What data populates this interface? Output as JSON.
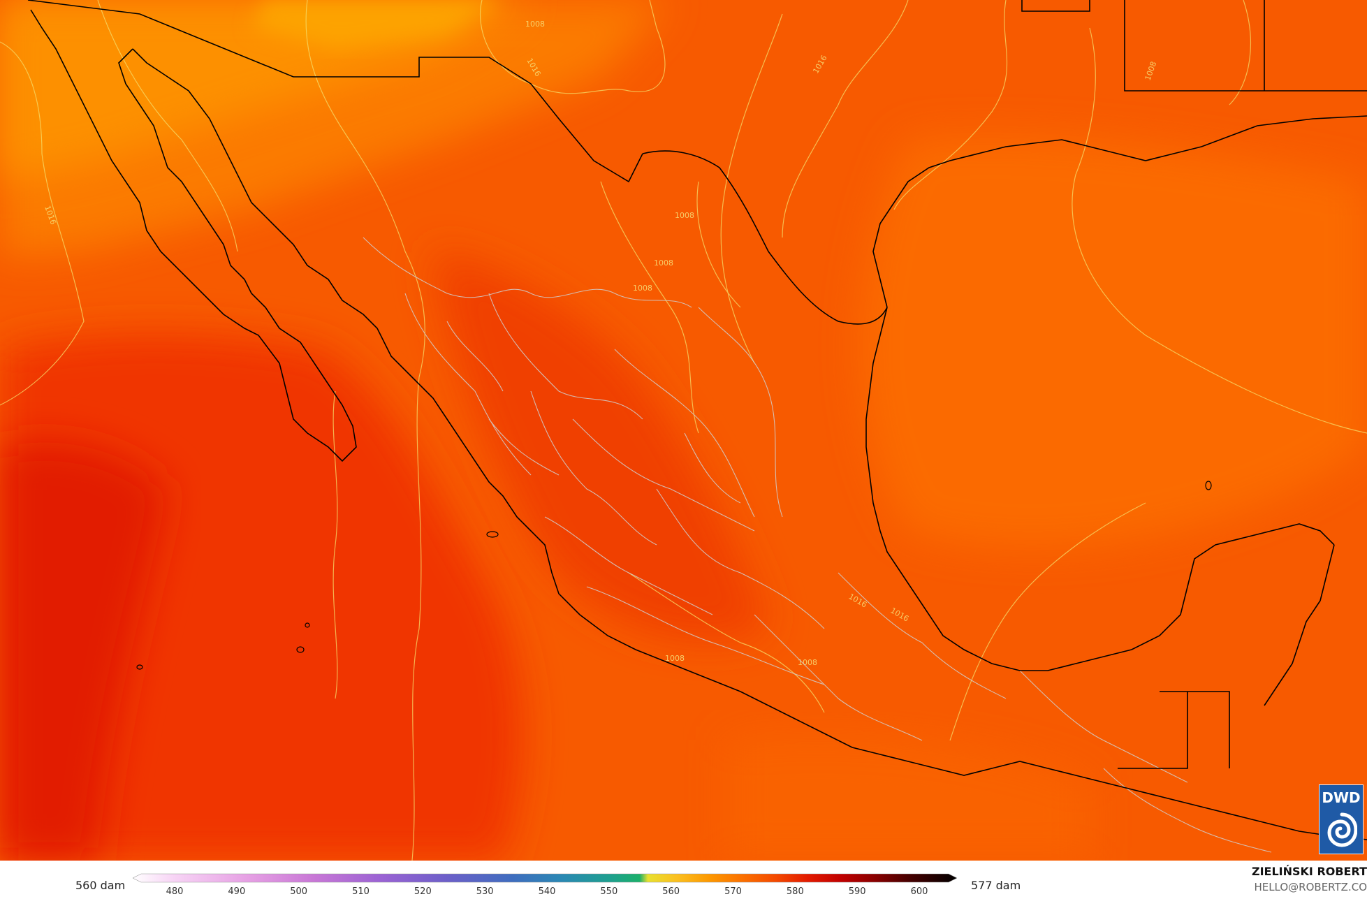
{
  "map": {
    "contour_labels": [
      "1008",
      "1016",
      "1016",
      "1008",
      "1008",
      "1008",
      "1008",
      "1016",
      "1016",
      "1016",
      "1008",
      "1008"
    ],
    "colors": {
      "pacific_deep": "#e21a00",
      "mid_red": "#f03700",
      "orange_red": "#f44a00",
      "orange": "#f96100",
      "light_orange": "#fc8200",
      "amber": "#fd9800",
      "coast": "#000000",
      "borders": "#c8c8c8",
      "contours": "#f5de6a"
    }
  },
  "logo": {
    "text": "DWD",
    "icon": "dwd-swirl-icon"
  },
  "legend": {
    "min_label": "560 dam",
    "max_label": "577 dam",
    "ticks": [
      "480",
      "490",
      "500",
      "510",
      "520",
      "530",
      "540",
      "550",
      "560",
      "570",
      "580",
      "590",
      "600"
    ]
  },
  "credit": {
    "name": "ZIELIŃSKI ROBERT",
    "email": "HELLO@ROBERTZ.CO"
  }
}
